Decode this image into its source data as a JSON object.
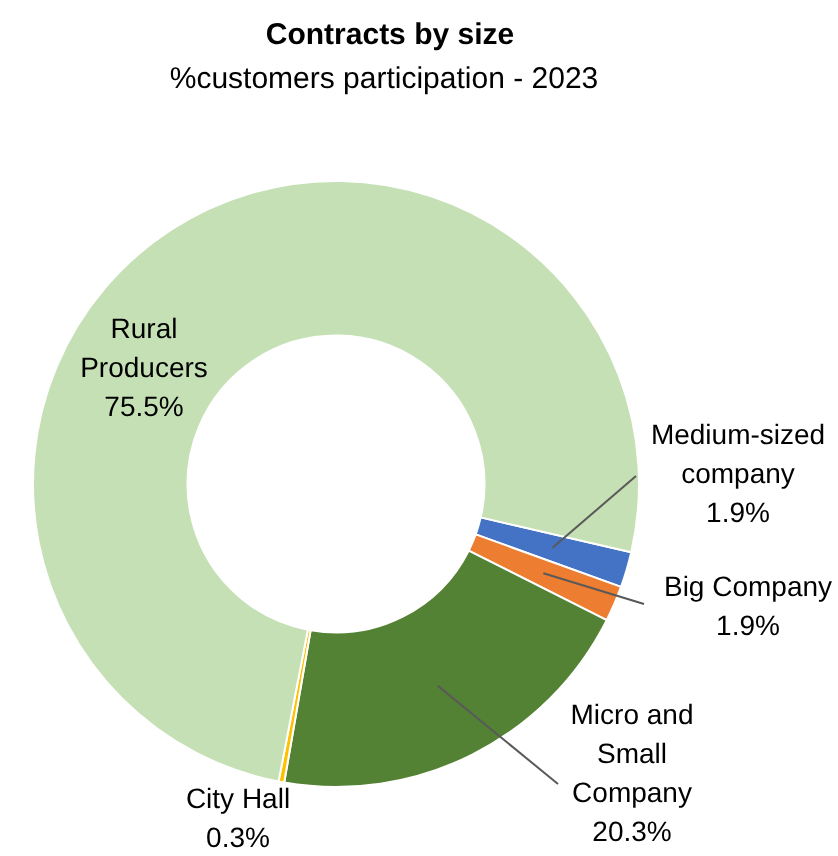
{
  "chart_data": {
    "type": "donut",
    "title": "Contracts by size",
    "subtitle": "%customers participation - 2023",
    "categories": [
      "Medium-sized company",
      "Big Company",
      "Micro and Small Company",
      "City Hall",
      "Rural Producers"
    ],
    "values": [
      1.9,
      1.9,
      20.3,
      0.3,
      75.5
    ],
    "value_labels": [
      "1.9%",
      "1.9%",
      "20.3%",
      "0.3%",
      "75.5%"
    ],
    "colors": [
      "#4472c4",
      "#ed7d31",
      "#548235",
      "#ffc000",
      "#c5e0b4"
    ],
    "legend": false
  }
}
